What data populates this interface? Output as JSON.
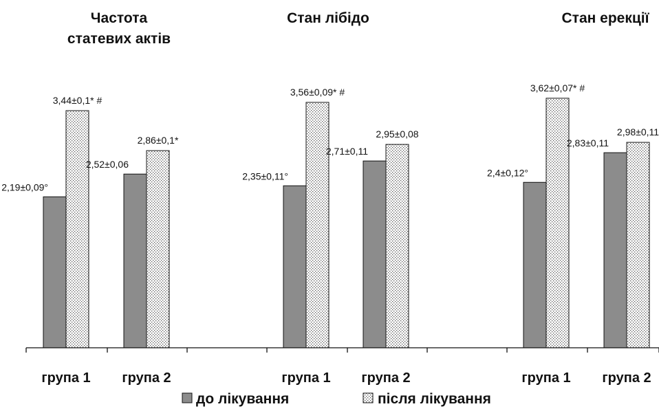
{
  "chart_data": {
    "type": "bar",
    "groups": [
      "група 1",
      "група 2"
    ],
    "panels": [
      {
        "title": [
          "Частота",
          "статевих  актів"
        ],
        "bars": [
          {
            "group": "група 1",
            "before": 2.19,
            "before_label": "2,19±0,09°",
            "after": 3.44,
            "after_label": "3,44±0,1* #"
          },
          {
            "group": "група 2",
            "before": 2.52,
            "before_label": "2,52±0,06",
            "after": 2.86,
            "after_label": "2,86±0,1*"
          }
        ]
      },
      {
        "title": [
          "Стан лібідо"
        ],
        "bars": [
          {
            "group": "група 1",
            "before": 2.35,
            "before_label": "2,35±0,11°",
            "after": 3.56,
            "after_label": "3,56±0,09* #"
          },
          {
            "group": "група 2",
            "before": 2.71,
            "before_label": "2,71±0,11",
            "after": 2.95,
            "after_label": "2,95±0,08"
          }
        ]
      },
      {
        "title": [
          "Стан ерекції"
        ],
        "bars": [
          {
            "group": "група 1",
            "before": 2.4,
            "before_label": "2,4±0,12°",
            "after": 3.62,
            "after_label": "3,62±0,07* #"
          },
          {
            "group": "група 2",
            "before": 2.83,
            "before_label": "2,83±0,11",
            "after": 2.98,
            "after_label": "2,98±0,11"
          }
        ]
      }
    ],
    "series": [
      {
        "name": "до лікування",
        "color": "#8c8c8c",
        "pattern": "solid"
      },
      {
        "name": "після лікування",
        "color": "#ffffff",
        "pattern": "dotted"
      }
    ],
    "ylim": [
      0,
      4
    ],
    "grid": false,
    "legend_position": "bottom-center"
  }
}
